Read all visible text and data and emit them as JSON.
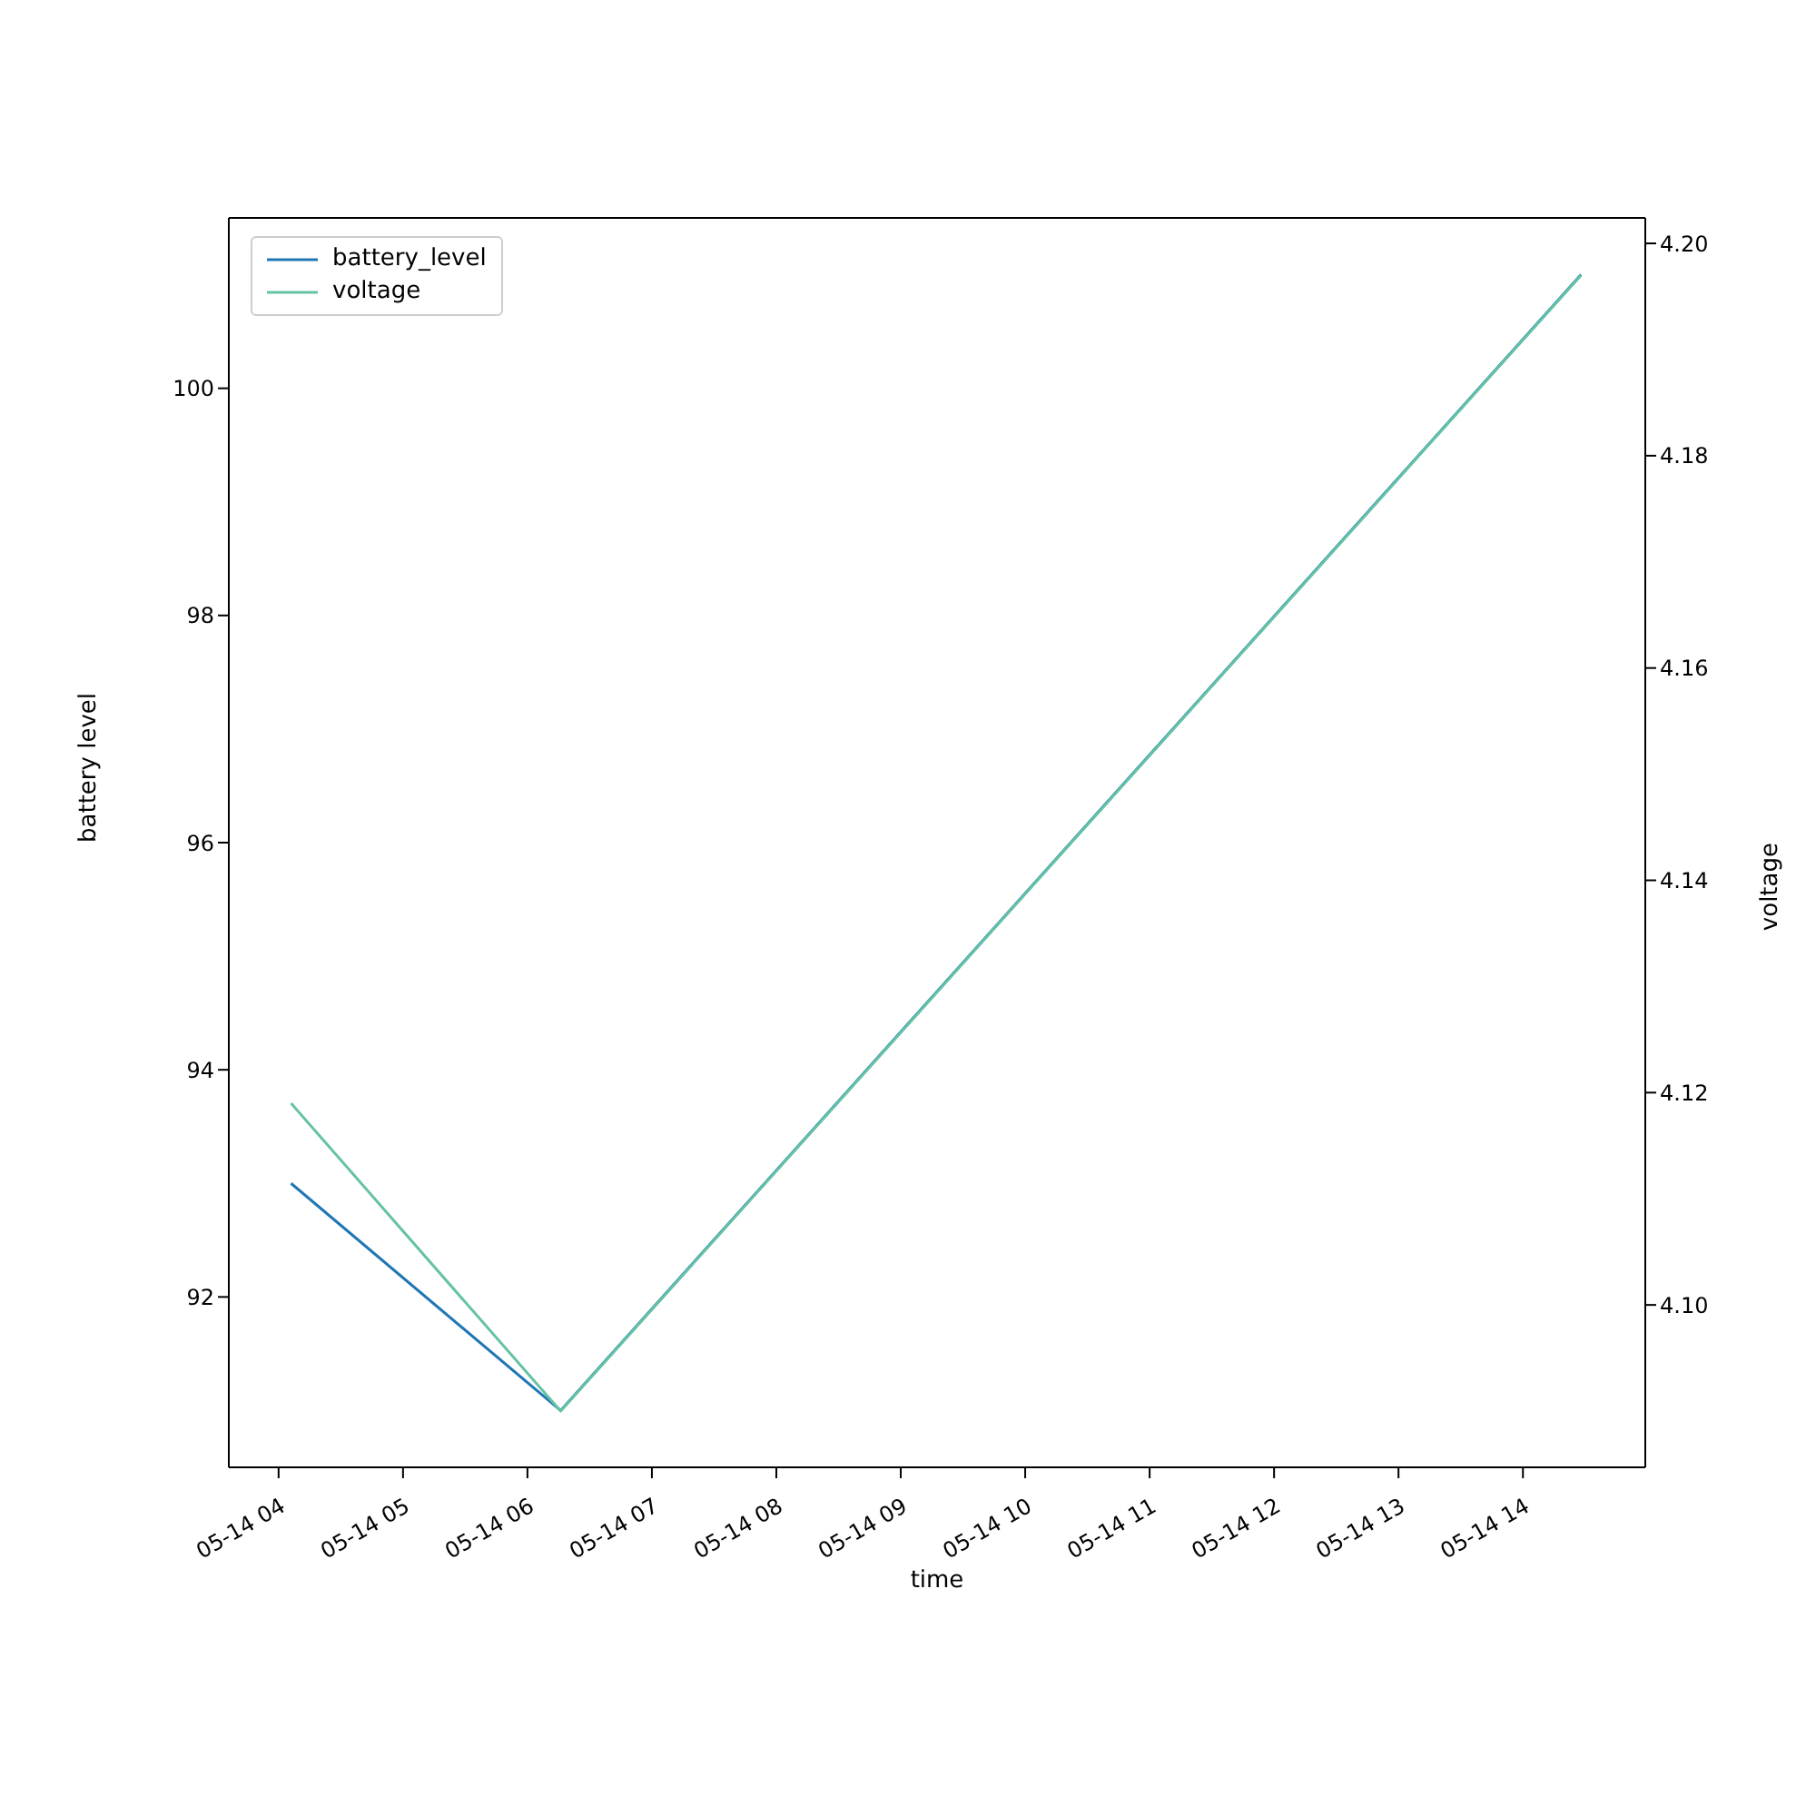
{
  "chart_data": {
    "type": "line",
    "xlabel": "time",
    "ylabel": "battery level",
    "y2label": "voltage",
    "x": [
      "--05-14T04:06",
      "--05-14T06:16",
      "--05-14T14:28"
    ],
    "series": [
      {
        "name": "battery_level",
        "color": "#1f77b4",
        "values": [
          93,
          91,
          101
        ]
      },
      {
        "name": "voltage",
        "color": "#66c2a5",
        "values": [
          4.119,
          4.09,
          4.197
        ],
        "axis": "y2"
      }
    ],
    "xlim": [
      "--05-14T03:36",
      "--05-14T14:59"
    ],
    "xticks": [
      {
        "value": "--05-14T04:00",
        "label": "05-14 04"
      },
      {
        "value": "--05-14T05:00",
        "label": "05-14 05"
      },
      {
        "value": "--05-14T06:00",
        "label": "05-14 06"
      },
      {
        "value": "--05-14T07:00",
        "label": "05-14 07"
      },
      {
        "value": "--05-14T08:00",
        "label": "05-14 08"
      },
      {
        "value": "--05-14T09:00",
        "label": "05-14 09"
      },
      {
        "value": "--05-14T10:00",
        "label": "05-14 10"
      },
      {
        "value": "--05-14T11:00",
        "label": "05-14 11"
      },
      {
        "value": "--05-14T12:00",
        "label": "05-14 12"
      },
      {
        "value": "--05-14T13:00",
        "label": "05-14 13"
      },
      {
        "value": "--05-14T14:00",
        "label": "05-14 14"
      }
    ],
    "ylim": [
      90.5,
      101.5
    ],
    "yticks": [
      92,
      94,
      96,
      98,
      100
    ],
    "y2lim": [
      4.0847,
      4.2024
    ],
    "y2ticks": [
      {
        "value": 4.1,
        "label": "4.10"
      },
      {
        "value": 4.12,
        "label": "4.12"
      },
      {
        "value": 4.14,
        "label": "4.14"
      },
      {
        "value": 4.16,
        "label": "4.16"
      },
      {
        "value": 4.18,
        "label": "4.18"
      },
      {
        "value": 4.2,
        "label": "4.20"
      }
    ],
    "legend": "top left",
    "marker": "none",
    "line_style": "solid"
  }
}
